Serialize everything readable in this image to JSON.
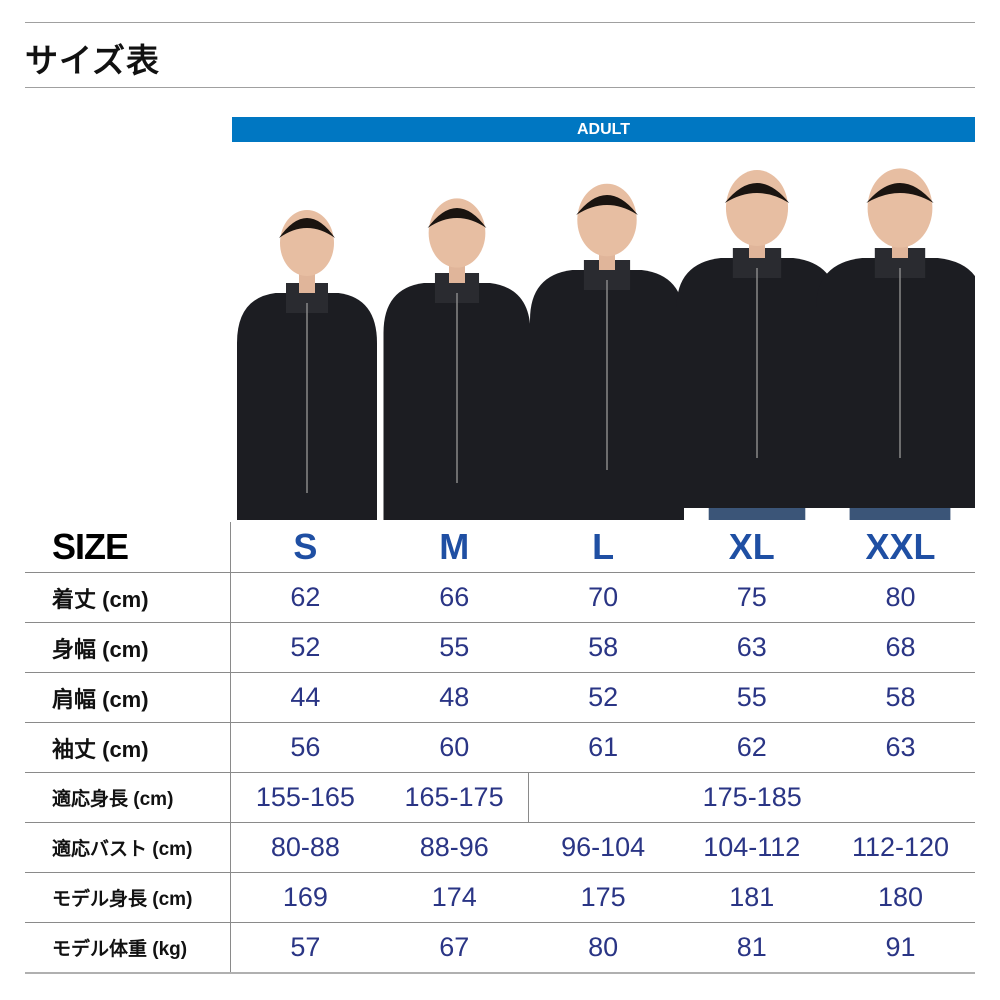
{
  "title": "サイズ表",
  "band_label": "ADULT",
  "colors": {
    "band": "#0077c2",
    "size_header": "#1f4fa3",
    "values": "#2a3585"
  },
  "table": {
    "header": {
      "label": "SIZE",
      "sizes": [
        "S",
        "M",
        "L",
        "XL",
        "XXL"
      ]
    },
    "rows": [
      {
        "label": "着丈 (cm)",
        "values": [
          "62",
          "66",
          "70",
          "75",
          "80"
        ]
      },
      {
        "label": "身幅 (cm)",
        "values": [
          "52",
          "55",
          "58",
          "63",
          "68"
        ]
      },
      {
        "label": "肩幅 (cm)",
        "values": [
          "44",
          "48",
          "52",
          "55",
          "58"
        ]
      },
      {
        "label": "袖丈 (cm)",
        "values": [
          "56",
          "60",
          "61",
          "62",
          "63"
        ]
      },
      {
        "label": "適応身長 (cm)",
        "values": [
          "155-165",
          "165-175",
          "175-185"
        ]
      },
      {
        "label": "適応バスト (cm)",
        "values": [
          "80-88",
          "88-96",
          "96-104",
          "104-112",
          "112-120"
        ]
      },
      {
        "label": "モデル身長 (cm)",
        "values": [
          "169",
          "174",
          "175",
          "181",
          "180"
        ]
      },
      {
        "label": "モデル体重 (kg)",
        "values": [
          "57",
          "67",
          "80",
          "81",
          "91"
        ]
      }
    ]
  }
}
